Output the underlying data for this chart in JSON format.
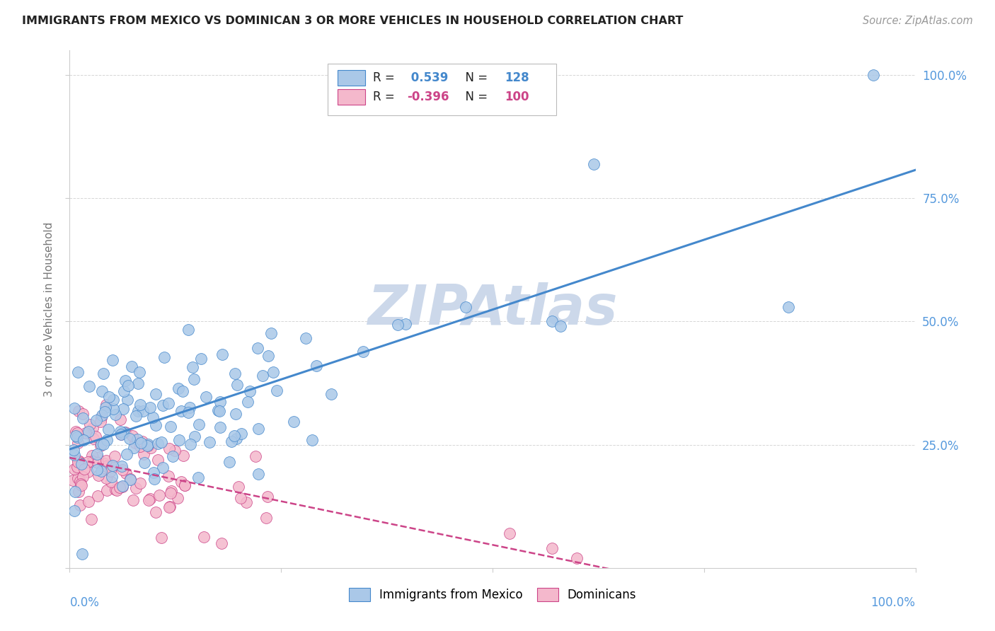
{
  "title": "IMMIGRANTS FROM MEXICO VS DOMINICAN 3 OR MORE VEHICLES IN HOUSEHOLD CORRELATION CHART",
  "source": "Source: ZipAtlas.com",
  "ylabel": "3 or more Vehicles in Household",
  "right_ytick_labels": [
    "25.0%",
    "50.0%",
    "75.0%",
    "100.0%"
  ],
  "right_ytick_values": [
    0.25,
    0.5,
    0.75,
    1.0
  ],
  "r_mexico": 0.539,
  "n_mexico": 128,
  "r_dominican": -0.396,
  "n_dominican": 100,
  "scatter_color_mexico": "#aac8e8",
  "scatter_color_dominican": "#f4b8cc",
  "line_color_mexico": "#4488cc",
  "line_color_dominican": "#cc4488",
  "watermark_color": "#ccd8ea",
  "background_color": "#ffffff",
  "grid_color": "#cccccc",
  "axis_label_color": "#5599dd",
  "ylabel_color": "#777777",
  "title_color": "#222222",
  "source_color": "#999999",
  "legend_text_color": "#222222",
  "legend_value_color": "#4488cc",
  "legend_value_color2": "#cc4488"
}
